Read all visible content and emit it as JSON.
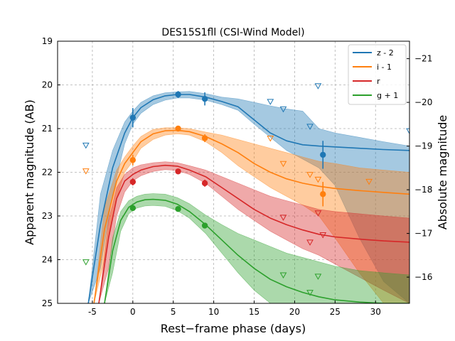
{
  "chart_data": {
    "type": "line",
    "title": "DES15S1fll (CSI-Wind Model)",
    "xlabel": "Rest−frame phase (days)",
    "ylabel": "Apparent magnitude (AB)",
    "y2label": "Absolute magnitude",
    "xlim": [
      -9.3,
      34.2
    ],
    "ylim": [
      25,
      19
    ],
    "y2lim": [
      -15.4,
      -21.4
    ],
    "x_ticks": [
      -5,
      0,
      5,
      10,
      15,
      20,
      25,
      30
    ],
    "y_ticks": [
      19,
      20,
      21,
      22,
      23,
      24,
      25
    ],
    "y2_ticks": [
      -16,
      -17,
      -18,
      -19,
      -20,
      -21
    ],
    "grid": true,
    "legend_position": "top-right",
    "colors": {
      "z": "#1f77b4",
      "i": "#ff7f0e",
      "r": "#d62728",
      "g": "#2ca02c"
    },
    "series": [
      {
        "key": "z",
        "name": "z - 2",
        "model": {
          "x": [
            -5.5,
            -4,
            -2.5,
            -1,
            0,
            1,
            2.5,
            4,
            5.5,
            7,
            9,
            11,
            13,
            15,
            17,
            19,
            21,
            23,
            25,
            28,
            31,
            34.2
          ],
          "y": [
            25,
            23.2,
            21.9,
            21.1,
            20.75,
            20.52,
            20.34,
            20.25,
            20.22,
            20.22,
            20.28,
            20.38,
            20.5,
            20.8,
            21.1,
            21.28,
            21.37,
            21.4,
            21.42,
            21.45,
            21.48,
            21.5
          ],
          "upper": [
            25,
            24.2,
            22.5,
            21.35,
            20.9,
            20.65,
            20.45,
            20.35,
            20.3,
            20.3,
            20.35,
            20.45,
            20.58,
            20.9,
            21.2,
            21.5,
            21.7,
            21.9,
            22.3,
            23.5,
            24.5,
            25
          ],
          "lower": [
            25,
            22.5,
            21.5,
            20.85,
            20.6,
            20.4,
            20.25,
            20.18,
            20.16,
            20.15,
            20.2,
            20.28,
            20.32,
            20.4,
            20.48,
            20.55,
            20.6,
            21.0,
            21.1,
            21.2,
            21.3,
            21.4
          ]
        },
        "detections": [
          {
            "x": 0,
            "y": 20.75,
            "err": 0.22
          },
          {
            "x": 5.6,
            "y": 20.22,
            "err": 0.08
          },
          {
            "x": 8.9,
            "y": 20.32,
            "err": 0.15
          },
          {
            "x": 23.5,
            "y": 21.6,
            "err": 0.32
          }
        ],
        "upper_limits": [
          {
            "x": -5.8,
            "y": 21.38
          },
          {
            "x": 17,
            "y": 20.38
          },
          {
            "x": 18.6,
            "y": 20.55
          },
          {
            "x": 21.9,
            "y": 20.95
          },
          {
            "x": 22.9,
            "y": 20.02
          },
          {
            "x": 34.2,
            "y": 21.05
          }
        ]
      },
      {
        "key": "i",
        "name": "i - 1",
        "model": {
          "x": [
            -4.8,
            -3.5,
            -2,
            -1,
            0,
            1,
            2.5,
            4,
            5.5,
            7,
            9,
            11,
            13,
            15,
            17,
            19,
            21,
            23,
            25,
            28,
            31,
            34.2
          ],
          "y": [
            25,
            23.3,
            22.2,
            21.8,
            21.55,
            21.3,
            21.12,
            21.05,
            21.04,
            21.07,
            21.18,
            21.35,
            21.55,
            21.8,
            22.0,
            22.15,
            22.25,
            22.32,
            22.37,
            22.42,
            22.46,
            22.5
          ],
          "upper": [
            25,
            24.0,
            22.6,
            22.0,
            21.75,
            21.45,
            21.25,
            21.15,
            21.12,
            21.15,
            21.3,
            21.55,
            21.85,
            22.1,
            22.35,
            22.55,
            22.75,
            23.0,
            23.5,
            24.3,
            25,
            25
          ],
          "lower": [
            25,
            22.8,
            21.95,
            21.65,
            21.4,
            21.18,
            21.02,
            20.98,
            20.98,
            21.0,
            21.08,
            21.15,
            21.25,
            21.35,
            21.45,
            21.55,
            21.65,
            21.75,
            21.8,
            21.9,
            21.95,
            22.0
          ]
        },
        "detections": [
          {
            "x": 0,
            "y": 21.72,
            "err": 0.12
          },
          {
            "x": 5.6,
            "y": 21.0,
            "err": 0.05
          },
          {
            "x": 8.9,
            "y": 21.22,
            "err": 0.09
          },
          {
            "x": 23.5,
            "y": 22.5,
            "err": 0.28
          }
        ],
        "upper_limits": [
          {
            "x": -5.8,
            "y": 21.97
          },
          {
            "x": 17,
            "y": 21.22
          },
          {
            "x": 18.6,
            "y": 21.8
          },
          {
            "x": 21.9,
            "y": 22.05
          },
          {
            "x": 22.9,
            "y": 22.16
          },
          {
            "x": 29.2,
            "y": 22.21
          }
        ]
      },
      {
        "key": "r",
        "name": "r",
        "model": {
          "x": [
            -4.2,
            -3,
            -2,
            -1,
            0,
            1,
            2.5,
            4,
            5.5,
            7,
            9,
            11,
            13,
            15,
            17,
            19,
            21,
            23,
            25,
            28,
            31,
            34.2
          ],
          "y": [
            25,
            23.5,
            22.6,
            22.2,
            22.05,
            21.95,
            21.87,
            21.84,
            21.86,
            21.95,
            22.1,
            22.35,
            22.6,
            22.85,
            23.05,
            23.2,
            23.32,
            23.42,
            23.48,
            23.53,
            23.57,
            23.6
          ],
          "upper": [
            25,
            24.2,
            23.0,
            22.45,
            22.2,
            22.08,
            21.98,
            21.94,
            21.96,
            22.05,
            22.25,
            22.55,
            22.85,
            23.1,
            23.35,
            23.55,
            23.75,
            23.9,
            24.1,
            24.4,
            24.7,
            25
          ],
          "lower": [
            25,
            23.1,
            22.35,
            22.05,
            21.9,
            21.83,
            21.78,
            21.76,
            21.78,
            21.85,
            21.95,
            22.1,
            22.25,
            22.4,
            22.55,
            22.65,
            22.75,
            22.85,
            22.9,
            22.95,
            23.0,
            23.05
          ]
        },
        "detections": [
          {
            "x": 0,
            "y": 22.22,
            "err": 0.08
          },
          {
            "x": 5.6,
            "y": 21.98,
            "err": 0.06
          },
          {
            "x": 8.9,
            "y": 22.25,
            "err": 0.08
          }
        ],
        "upper_limits": [
          {
            "x": 18.6,
            "y": 23.03
          },
          {
            "x": 21.9,
            "y": 23.6
          },
          {
            "x": 22.9,
            "y": 22.93
          },
          {
            "x": 23.5,
            "y": 23.43
          }
        ]
      },
      {
        "key": "g",
        "name": "g + 1",
        "model": {
          "x": [
            -3.5,
            -2.5,
            -1.5,
            -0.5,
            0.5,
            1.5,
            2.5,
            4,
            5.5,
            7,
            9,
            11,
            13,
            15,
            17,
            19,
            21,
            23,
            25,
            28,
            31,
            34.2
          ],
          "y": [
            25,
            23.8,
            23.1,
            22.8,
            22.68,
            22.63,
            22.62,
            22.64,
            22.73,
            22.9,
            23.2,
            23.55,
            23.9,
            24.2,
            24.45,
            24.62,
            24.75,
            24.85,
            24.92,
            24.97,
            25.0,
            25.0
          ],
          "upper": [
            25,
            24.3,
            23.35,
            22.95,
            22.82,
            22.77,
            22.76,
            22.78,
            22.88,
            23.05,
            23.4,
            23.85,
            24.3,
            24.7,
            25,
            25,
            25,
            25,
            25,
            25,
            25,
            25
          ],
          "lower": [
            25,
            23.5,
            22.9,
            22.65,
            22.55,
            22.5,
            22.49,
            22.5,
            22.58,
            22.72,
            22.98,
            23.2,
            23.4,
            23.55,
            23.7,
            23.85,
            23.95,
            24.05,
            24.15,
            24.25,
            24.3,
            24.35
          ]
        },
        "detections": [
          {
            "x": 0,
            "y": 22.82,
            "err": 0.06
          },
          {
            "x": 5.6,
            "y": 22.84,
            "err": 0.05
          },
          {
            "x": 8.9,
            "y": 23.22,
            "err": 0.06
          }
        ],
        "upper_limits": [
          {
            "x": -5.8,
            "y": 24.05
          },
          {
            "x": 18.6,
            "y": 24.35
          },
          {
            "x": 21.9,
            "y": 24.75
          },
          {
            "x": 22.9,
            "y": 24.38
          }
        ]
      }
    ]
  }
}
